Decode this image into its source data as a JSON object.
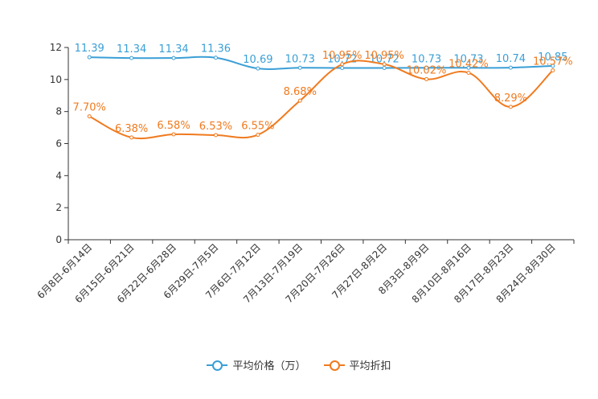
{
  "chart_data": {
    "type": "line",
    "categories": [
      "6月8日-6月14日",
      "6月15日-6月21日",
      "6月22日-6月28日",
      "6月29日-7月5日",
      "7月6日-7月12日",
      "7月13日-7月19日",
      "7月20日-7月26日",
      "7月27日-8月2日",
      "8月3日-8月9日",
      "8月10日-8月16日",
      "8月17日-8月23日",
      "8月24日-8月30日"
    ],
    "ylim": [
      0,
      12
    ],
    "yticks": [
      0,
      2,
      4,
      6,
      8,
      10,
      12
    ],
    "series": [
      {
        "name": "平均价格（万）",
        "color": "#3a9fd6",
        "values": [
          11.39,
          11.34,
          11.34,
          11.36,
          10.69,
          10.73,
          10.72,
          10.72,
          10.73,
          10.73,
          10.74,
          10.85
        ],
        "labels": [
          "11.39",
          "11.34",
          "11.34",
          "11.36",
          "10.69",
          "10.73",
          "10.72",
          "10.72",
          "10.73",
          "10.73",
          "10.74",
          "10.85"
        ]
      },
      {
        "name": "平均折扣",
        "color": "#f07a1e",
        "values": [
          7.7,
          6.38,
          6.58,
          6.53,
          6.55,
          8.68,
          10.95,
          10.95,
          10.02,
          10.42,
          8.29,
          10.57
        ],
        "labels": [
          "7.70%",
          "6.38%",
          "6.58%",
          "6.53%",
          "6.55%",
          "8.68%",
          "10.95%",
          "10.95%",
          "10.02%",
          "10.42%",
          "8.29%",
          "10.57%"
        ]
      }
    ]
  }
}
